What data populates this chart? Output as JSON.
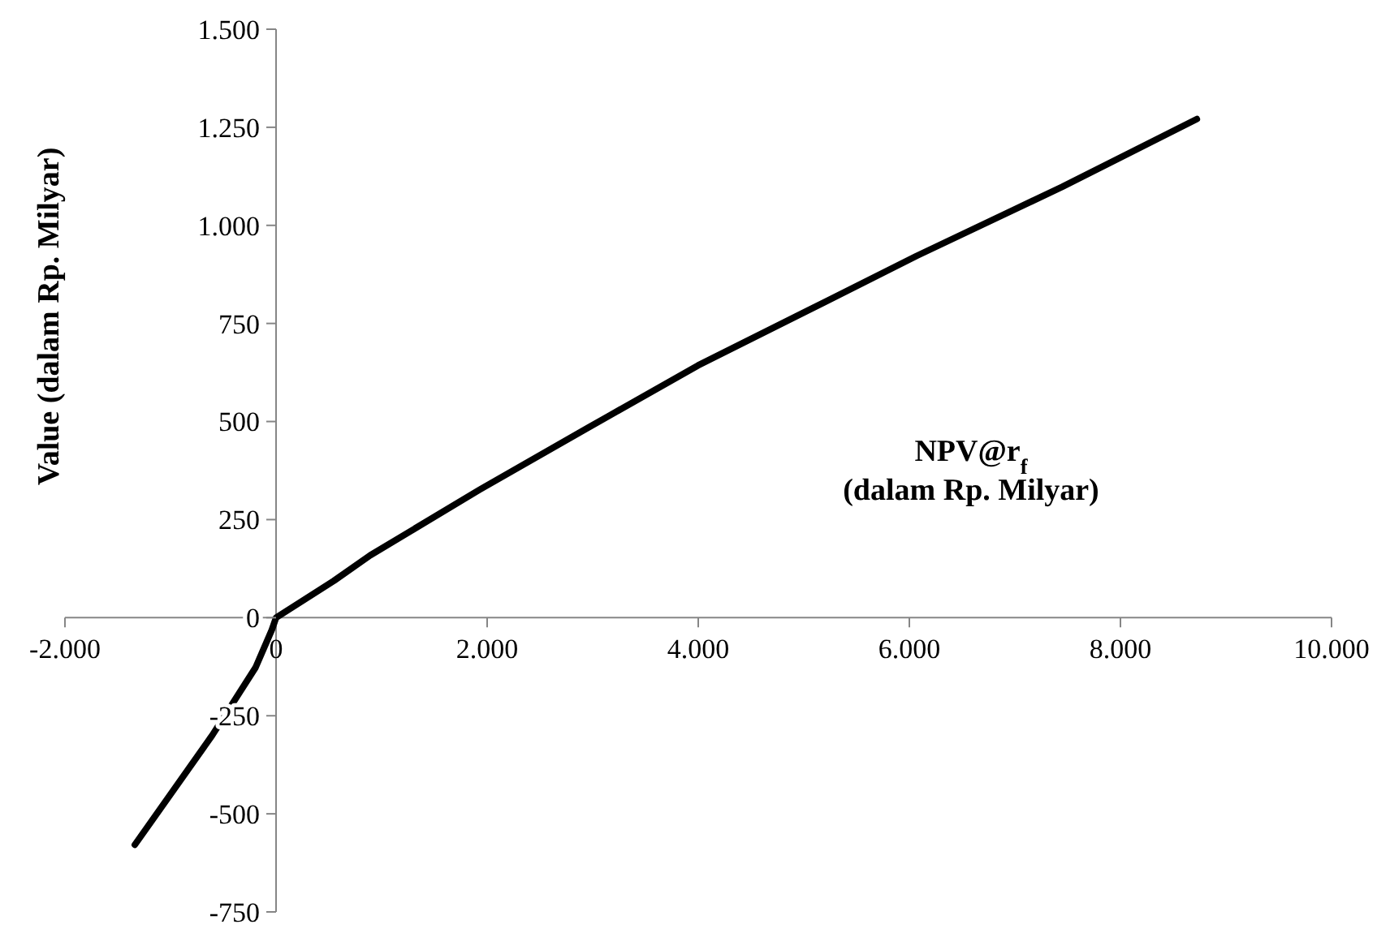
{
  "chart_data": {
    "type": "line",
    "xlabel": "NPV@r$_{f}$\n(dalam Rp. Milyar)",
    "ylabel": "Value (dalam Rp. Milyar)",
    "x": [
      -1338,
      -605,
      -194,
      -40,
      0,
      548,
      892,
      1928,
      2962,
      3998,
      5032,
      6068,
      7447,
      8724
    ],
    "series": [
      {
        "color": "#000000",
        "values": [
          -579,
          -300,
          -127,
          -31,
          0,
          94,
          159,
          326,
          485,
          643,
          782,
          922,
          1098,
          1271
        ]
      }
    ],
    "xlim": [
      -2000,
      10000
    ],
    "xticks": [
      {
        "value": -2000,
        "label": "-2.000"
      },
      0,
      {
        "value": 2000,
        "label": "2.000"
      },
      {
        "value": 4000,
        "label": "4.000"
      },
      {
        "value": 6000,
        "label": "6.000"
      },
      {
        "value": 8000,
        "label": "8.000"
      },
      {
        "value": 10000,
        "label": "10.000"
      }
    ],
    "ylim": [
      -750,
      1500
    ],
    "yticks": [
      -750,
      -500,
      -250,
      0,
      250,
      500,
      750,
      {
        "value": 1000,
        "label": "1.000"
      },
      {
        "value": 1250,
        "label": "1.250"
      },
      {
        "value": 1500,
        "label": "1.500"
      }
    ],
    "grid": false,
    "marker": "none",
    "line_style": "solid"
  }
}
